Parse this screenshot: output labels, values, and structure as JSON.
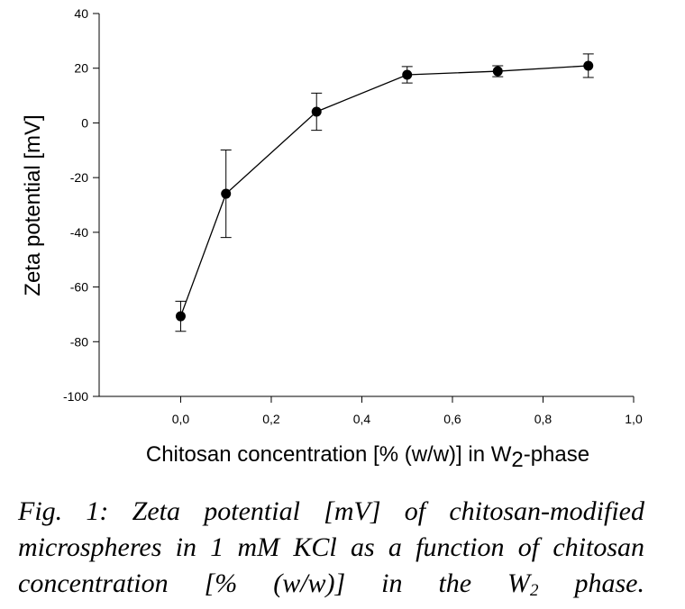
{
  "chart_data": {
    "type": "line",
    "xlabel": [
      "Chitosan concentration [% (w/w)] in W",
      "2",
      "-phase"
    ],
    "ylabel": "Zeta potential [mV]",
    "x": [
      0.0,
      0.1,
      0.3,
      0.5,
      0.7,
      0.9
    ],
    "series": [
      {
        "color": "#000000",
        "values": [
          -70.7,
          -25.9,
          4.1,
          17.6,
          18.9,
          20.9
        ],
        "errors": [
          5.5,
          16,
          6.8,
          3,
          2,
          4.3
        ]
      }
    ],
    "xlim": [
      -0.18,
      1.0
    ],
    "ylim": [
      -100,
      40
    ],
    "xticks": [
      {
        "value": 0.0,
        "label": "0,0"
      },
      {
        "value": 0.2,
        "label": "0,2"
      },
      {
        "value": 0.4,
        "label": "0,4"
      },
      {
        "value": 0.6,
        "label": "0,6"
      },
      {
        "value": 0.8,
        "label": "0,8"
      },
      {
        "value": 1.0,
        "label": "1,0"
      }
    ],
    "yticks": [
      -100,
      -80,
      -60,
      -40,
      -20,
      0,
      20,
      40
    ]
  },
  "caption": [
    "Fig. 1:  Zeta potential [mV] of chitosan-modified microspheres in 1 mM KCl as a function of chitosan concentration [% (w/w)] in the W",
    "2",
    " phase."
  ]
}
